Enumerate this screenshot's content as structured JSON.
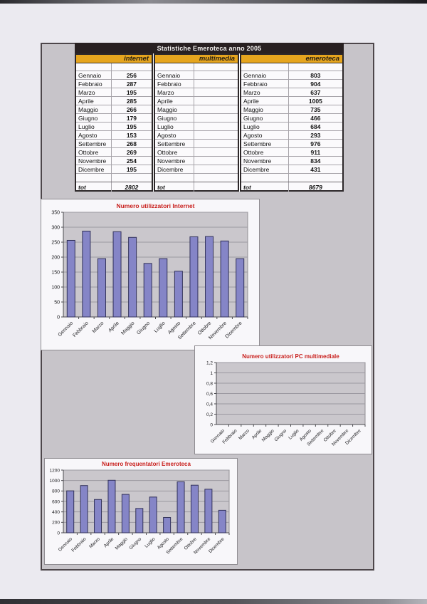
{
  "page": {
    "background": "#ebeaf0",
    "panel_fill": "#c7c4c9",
    "accent_red": "#c9211e",
    "header_yellow": "#e6a51e",
    "title_bar_dark": "#282021"
  },
  "table": {
    "title": "Statistiche Emeroteca anno 2005",
    "months": [
      "Gennaio",
      "Febbraio",
      "Marzo",
      "Aprile",
      "Maggio",
      "Giugno",
      "Luglio",
      "Agosto",
      "Settembre",
      "Ottobre",
      "Novembre",
      "Dicembre"
    ],
    "tot_label": "tot",
    "groups": [
      {
        "name": "internet",
        "values": [
          "256",
          "287",
          "195",
          "285",
          "266",
          "179",
          "195",
          "153",
          "268",
          "269",
          "254",
          "195"
        ],
        "total": "2802"
      },
      {
        "name": "multimedia",
        "values": [
          "",
          "",
          "",
          "",
          "",
          "",
          "",
          "",
          "",
          "",
          "",
          ""
        ],
        "total": ""
      },
      {
        "name": "emeroteca",
        "values": [
          "803",
          "904",
          "637",
          "1005",
          "735",
          "466",
          "684",
          "293",
          "976",
          "911",
          "834",
          "431"
        ],
        "total": "8679"
      }
    ]
  },
  "chart_data": [
    {
      "type": "bar",
      "title": "Numero utilizzatori  Internet",
      "title_color": "#c9211e",
      "categories": [
        "Gennaio",
        "Febbraio",
        "Marzo",
        "Aprile",
        "Maggio",
        "Giugno",
        "Luglio",
        "Agosto",
        "Settembre",
        "Ottobre",
        "Novembre",
        "Dicembre"
      ],
      "values": [
        256,
        287,
        195,
        285,
        266,
        179,
        195,
        153,
        268,
        269,
        254,
        195
      ],
      "xlabel": "",
      "ylabel": "",
      "ylim": [
        0,
        350
      ],
      "ytick_labels": [
        "0",
        "50",
        "100",
        "150",
        "200",
        "250",
        "300",
        "350"
      ],
      "grid": true,
      "legend": false,
      "bar_color": "#8585c7",
      "bar_stroke": "#32325a",
      "plot_bg": "#cac7cc"
    },
    {
      "type": "bar",
      "title": "Numero utilizzatori PC multimediale",
      "title_color": "#c9211e",
      "categories": [
        "Gennaio",
        "Febbraio",
        "Marzo",
        "Aprile",
        "Maggio",
        "Giugno",
        "Luglio",
        "Agosto",
        "Settembre",
        "Ottobre",
        "Novembre",
        "Dicembre"
      ],
      "values": [
        null,
        null,
        null,
        null,
        null,
        null,
        null,
        null,
        null,
        null,
        null,
        null
      ],
      "xlabel": "",
      "ylabel": "",
      "ylim": [
        0,
        1.2
      ],
      "ytick_labels": [
        "0",
        "0,2",
        "0,4",
        "0,6",
        "0,8",
        "1",
        "1,2"
      ],
      "grid": true,
      "legend": false,
      "bar_color": "#8585c7",
      "bar_stroke": "#32325a",
      "plot_bg": "#cac7cc"
    },
    {
      "type": "bar",
      "title": "Numero frequentatori Emeroteca",
      "title_color": "#c9211e",
      "categories": [
        "Gennaio",
        "Febbraio",
        "Marzo",
        "Aprile",
        "Maggio",
        "Giugno",
        "Luglio",
        "Agosto",
        "Settembre",
        "Ottobre",
        "Novembre",
        "Dicembre"
      ],
      "values": [
        803,
        904,
        637,
        1005,
        735,
        466,
        684,
        293,
        976,
        911,
        834,
        431
      ],
      "xlabel": "",
      "ylabel": "",
      "ylim": [
        0,
        1200
      ],
      "ytick_labels": [
        "0",
        "200",
        "400",
        "600",
        "800",
        "1000",
        "1200"
      ],
      "grid": true,
      "legend": false,
      "bar_color": "#8585c7",
      "bar_stroke": "#32325a",
      "plot_bg": "#cac7cc"
    }
  ]
}
